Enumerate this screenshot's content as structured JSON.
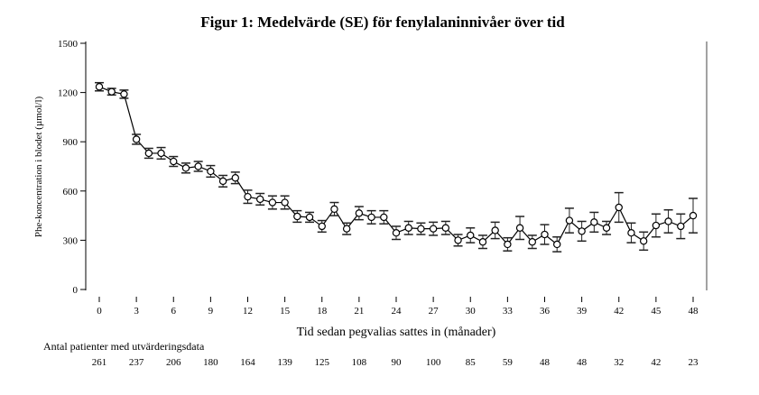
{
  "chart_data": {
    "type": "line",
    "title": "Figur 1: Medelvärde (SE) för fenylalaninnivåer över tid",
    "xlabel": "Tid sedan pegvalias sattes in (månader)",
    "ylabel": "Phe-koncentration i blodet (µmol/l)",
    "xlim": [
      0,
      48
    ],
    "ylim": [
      0,
      1500
    ],
    "xticks": [
      "0",
      "3",
      "6",
      "9",
      "12",
      "15",
      "18",
      "21",
      "24",
      "27",
      "30",
      "33",
      "36",
      "39",
      "42",
      "45",
      "48"
    ],
    "yticks": [
      "0",
      "300",
      "600",
      "900",
      "1200",
      "1500"
    ],
    "series": [
      {
        "name": "Medelvärde",
        "x": [
          0,
          1,
          2,
          3,
          4,
          5,
          6,
          7,
          8,
          9,
          10,
          11,
          12,
          13,
          14,
          15,
          16,
          17,
          18,
          19,
          20,
          21,
          22,
          23,
          24,
          25,
          26,
          27,
          28,
          29,
          30,
          31,
          32,
          33,
          34,
          35,
          36,
          37,
          38,
          39,
          40,
          41,
          42,
          43,
          44,
          45,
          46,
          47,
          48
        ],
        "y": [
          1235,
          1205,
          1190,
          915,
          830,
          830,
          780,
          740,
          750,
          720,
          660,
          680,
          565,
          550,
          530,
          530,
          445,
          440,
          385,
          490,
          370,
          465,
          440,
          440,
          345,
          375,
          370,
          370,
          375,
          300,
          330,
          290,
          360,
          275,
          375,
          290,
          335,
          275,
          420,
          355,
          410,
          375,
          500,
          345,
          295,
          390,
          415,
          385,
          450
        ],
        "se": [
          25,
          20,
          25,
          30,
          30,
          35,
          30,
          30,
          30,
          35,
          35,
          35,
          40,
          35,
          40,
          40,
          35,
          30,
          35,
          40,
          35,
          40,
          40,
          40,
          40,
          40,
          35,
          40,
          40,
          35,
          45,
          40,
          50,
          40,
          70,
          40,
          60,
          45,
          75,
          60,
          60,
          40,
          90,
          60,
          55,
          70,
          70,
          75,
          105
        ]
      }
    ],
    "patients_label": "Antal patienter med utvärderingsdata",
    "patients": [
      "261",
      "237",
      "206",
      "180",
      "164",
      "139",
      "125",
      "108",
      "90",
      "100",
      "85",
      "59",
      "48",
      "48",
      "32",
      "42",
      "23"
    ]
  }
}
